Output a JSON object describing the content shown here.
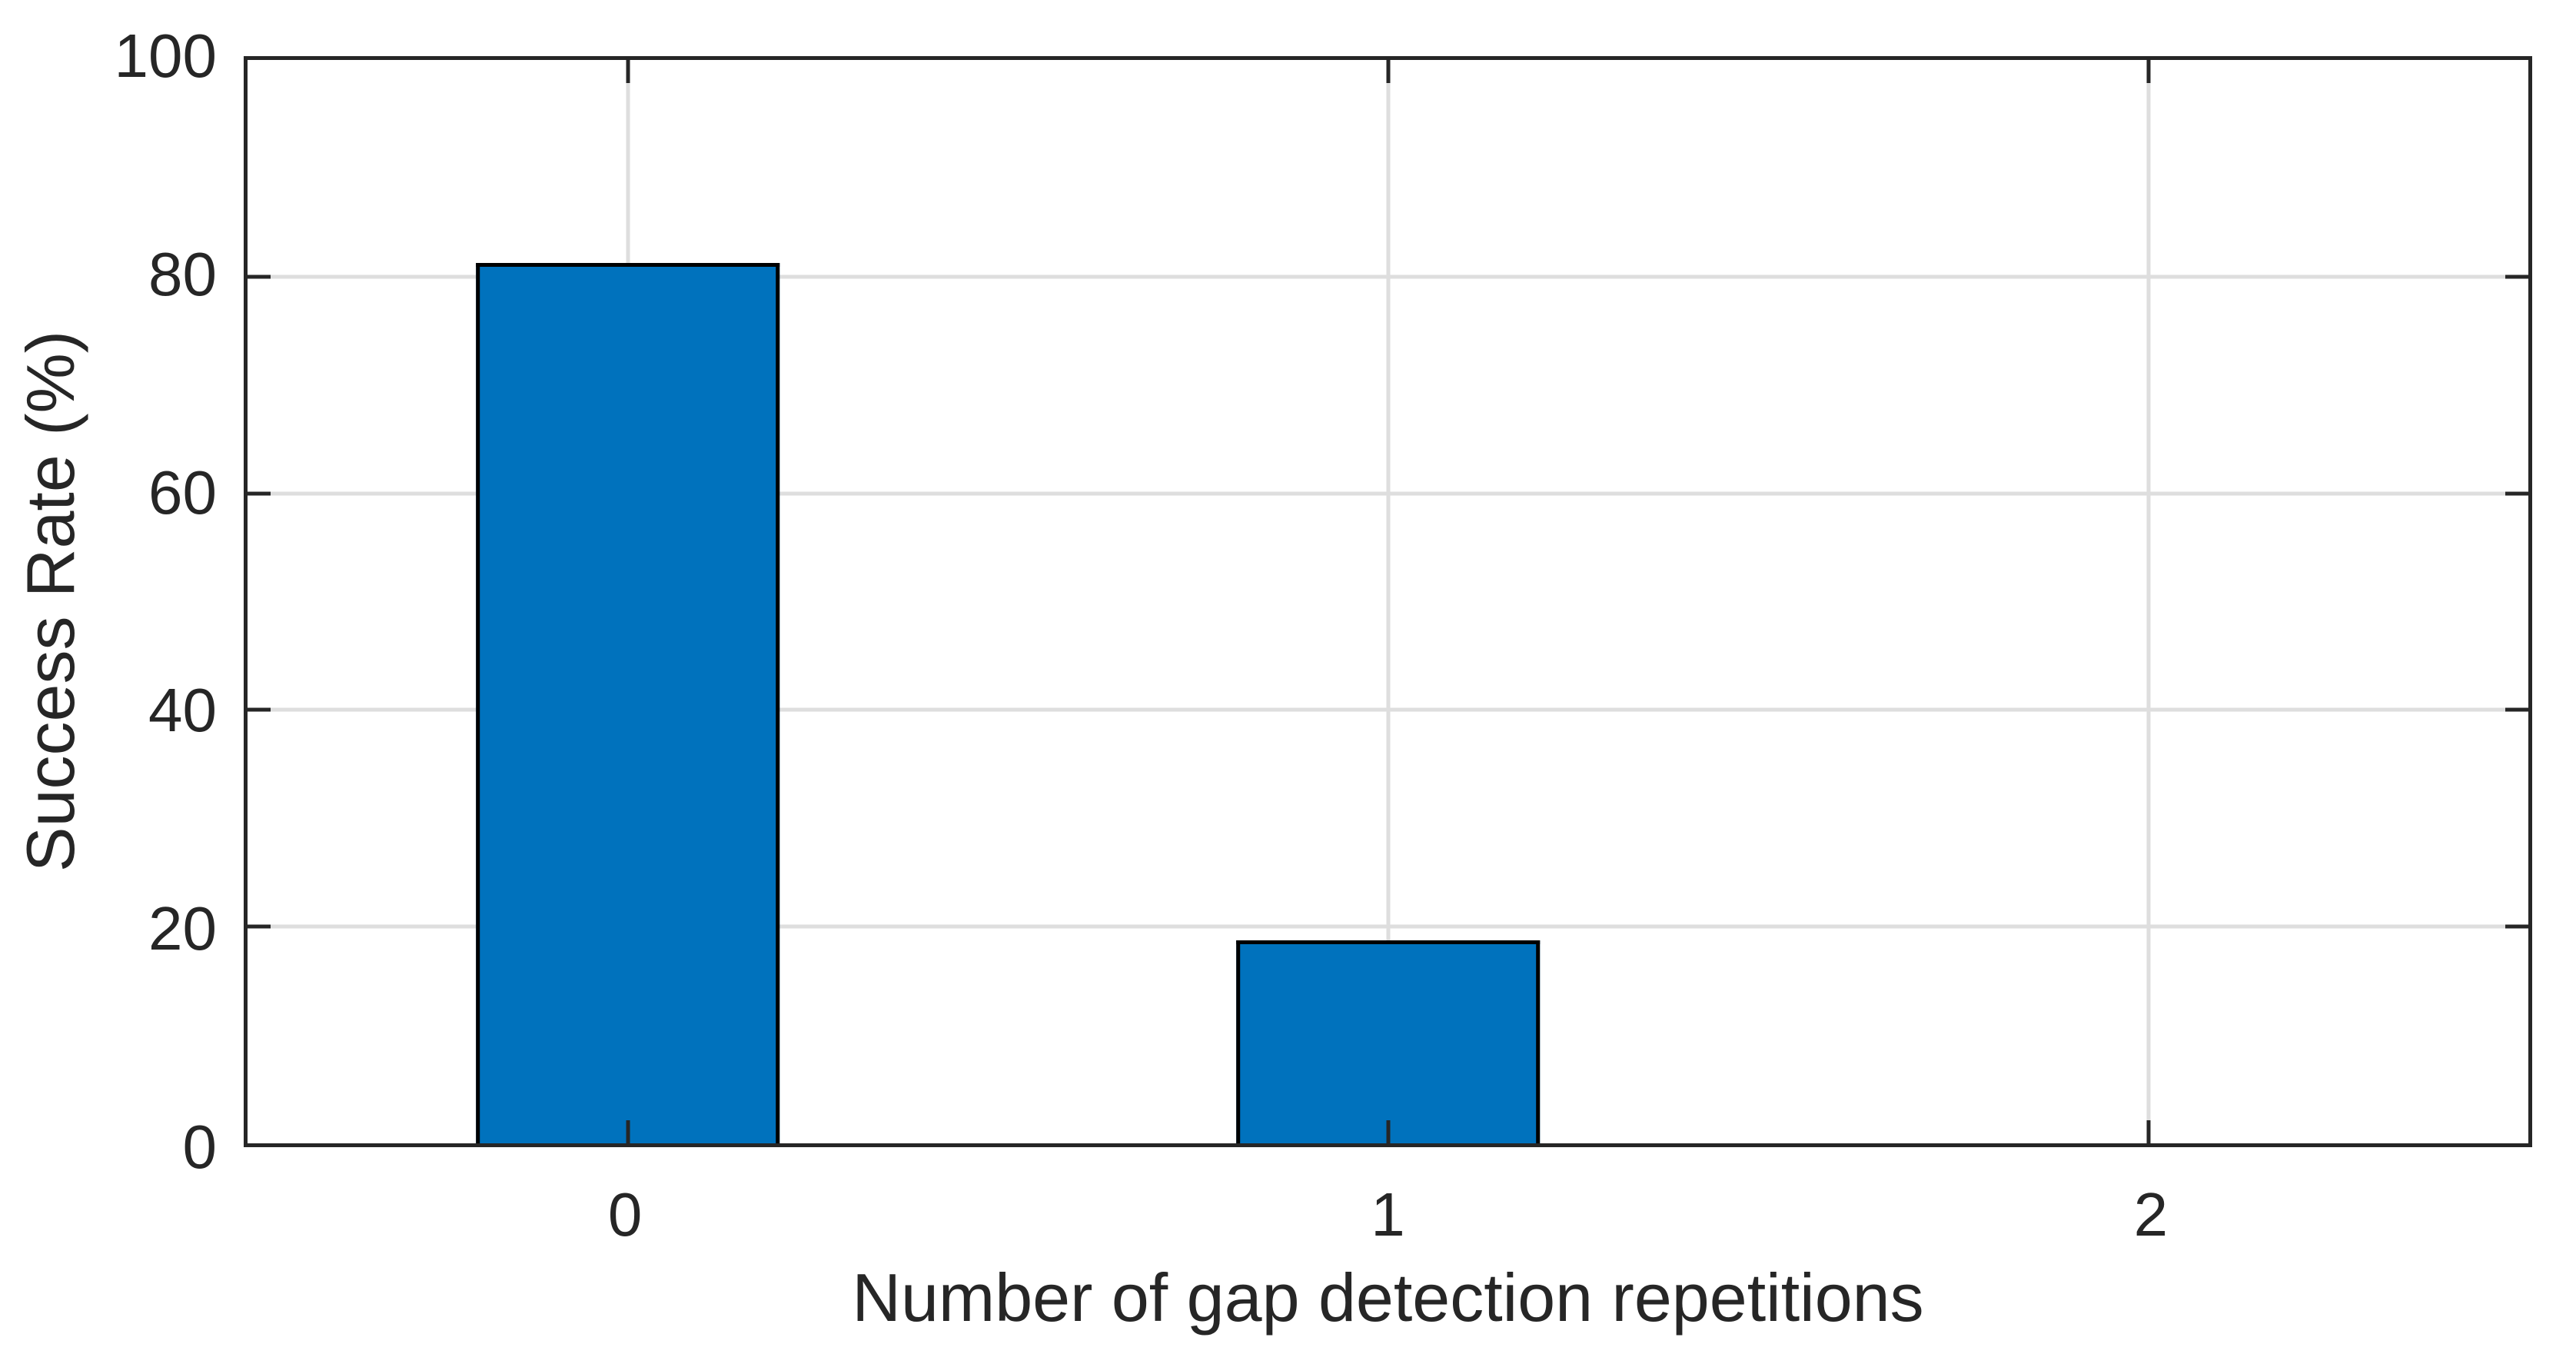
{
  "figure": {
    "background": "#ffffff"
  },
  "chart_data": {
    "type": "bar",
    "title": "",
    "xlabel": "Number of gap detection repetitions",
    "ylabel": "Success Rate (%)",
    "categories": [
      "0",
      "1",
      "2"
    ],
    "values": [
      81.25,
      18.75,
      0
    ],
    "ylim": [
      0,
      100
    ],
    "yticks": [
      0,
      20,
      40,
      60,
      80,
      100
    ],
    "grid": true,
    "legend": null,
    "bar_width_fraction": 0.4,
    "tick_direction": "in",
    "colors": {
      "bar_fill": "#0072BD",
      "bar_edge": "#000000",
      "grid": "#dedede",
      "axis": "#262626",
      "text": "#262626"
    }
  }
}
